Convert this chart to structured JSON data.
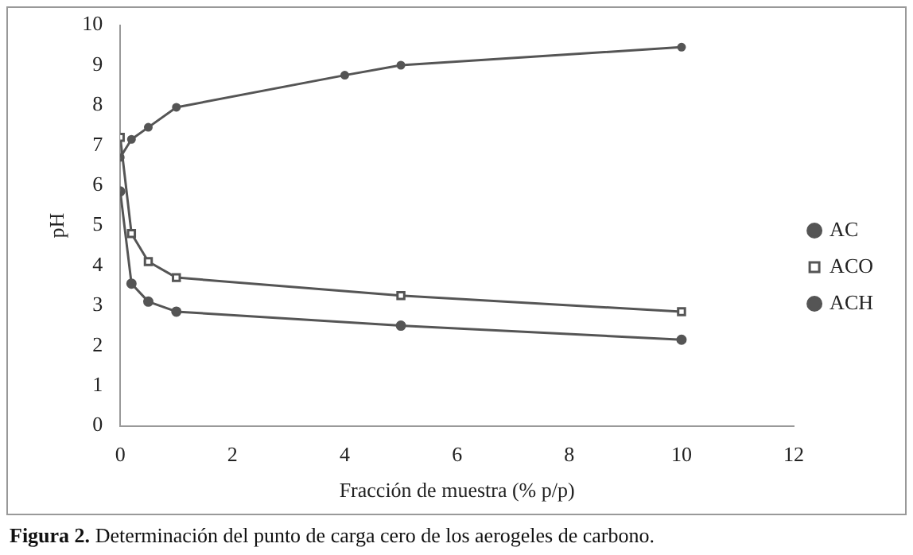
{
  "chart_data": {
    "type": "line",
    "xlabel": "Fracción de muestra (% p/p)",
    "ylabel": "pH",
    "xlim": [
      0,
      12
    ],
    "xticks": [
      0,
      2,
      4,
      6,
      8,
      10,
      12
    ],
    "ylim": [
      0,
      10
    ],
    "yticks": [
      0,
      1,
      2,
      3,
      4,
      5,
      6,
      7,
      8,
      9,
      10
    ],
    "grid": false,
    "legend": "right",
    "line_style": "solid",
    "series": [
      {
        "name": "AC",
        "color": "#555555",
        "marker": "circle",
        "x": [
          0,
          0.2,
          0.5,
          1,
          4,
          5,
          10
        ],
        "values": [
          6.7,
          7.15,
          7.45,
          7.95,
          8.75,
          9.0,
          9.45
        ]
      },
      {
        "name": "ACO",
        "color": "#555555",
        "marker": "square",
        "x": [
          0,
          0.2,
          0.5,
          1,
          5,
          10
        ],
        "values": [
          7.2,
          4.8,
          4.1,
          3.7,
          3.25,
          2.85
        ]
      },
      {
        "name": "ACH",
        "color": "#555555",
        "marker": "circle",
        "x": [
          0,
          0.2,
          0.5,
          1,
          5,
          10
        ],
        "values": [
          5.85,
          3.55,
          3.1,
          2.85,
          2.5,
          2.15
        ]
      }
    ],
    "annotations": [
      "Figura 2. Determinación del punto de carga cero de los aerogeles de carbono."
    ]
  }
}
